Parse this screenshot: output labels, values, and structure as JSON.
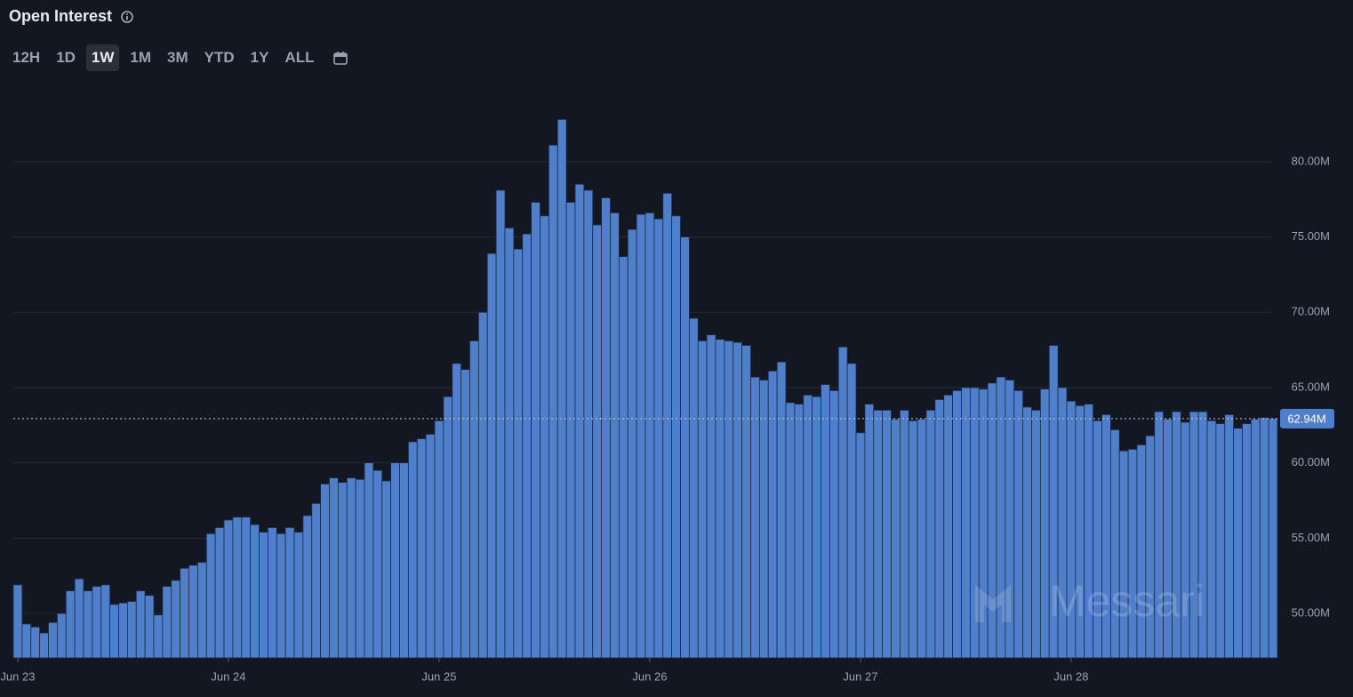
{
  "ui": {
    "title": "Open Interest",
    "ranges": [
      "12H",
      "1D",
      "1W",
      "1M",
      "3M",
      "YTD",
      "1Y",
      "ALL"
    ],
    "selected": "1W",
    "watermark": "Messari"
  },
  "chart_data": {
    "type": "bar",
    "color": "#4f7fcb",
    "categories": [
      "Jun 23",
      null,
      null,
      null,
      null,
      null,
      null,
      null,
      null,
      null,
      null,
      null,
      null,
      null,
      null,
      null,
      null,
      null,
      null,
      null,
      null,
      null,
      null,
      null,
      "Jun 24",
      null,
      null,
      null,
      null,
      null,
      null,
      null,
      null,
      null,
      null,
      null,
      null,
      null,
      null,
      null,
      null,
      null,
      null,
      null,
      null,
      null,
      null,
      null,
      "Jun 25",
      null,
      null,
      null,
      null,
      null,
      null,
      null,
      null,
      null,
      null,
      null,
      null,
      null,
      null,
      null,
      null,
      null,
      null,
      null,
      null,
      null,
      null,
      null,
      "Jun 26",
      null,
      null,
      null,
      null,
      null,
      null,
      null,
      null,
      null,
      null,
      null,
      null,
      null,
      null,
      null,
      null,
      null,
      null,
      null,
      null,
      null,
      null,
      null,
      "Jun 27",
      null,
      null,
      null,
      null,
      null,
      null,
      null,
      null,
      null,
      null,
      null,
      null,
      null,
      null,
      null,
      null,
      null,
      null,
      null,
      null,
      null,
      null,
      null,
      "Jun 28",
      null,
      null,
      null,
      null,
      null,
      null,
      null,
      null,
      null,
      null,
      null,
      null,
      null,
      null,
      null,
      null,
      null,
      null,
      null,
      null,
      null,
      null,
      null
    ],
    "values": [
      51.9,
      49.3,
      49.1,
      48.7,
      49.4,
      50.0,
      51.5,
      52.3,
      51.5,
      51.8,
      51.9,
      50.6,
      50.7,
      50.8,
      51.5,
      51.2,
      49.9,
      51.8,
      52.2,
      53.0,
      53.2,
      53.4,
      55.3,
      55.7,
      56.2,
      56.4,
      56.4,
      55.9,
      55.4,
      55.7,
      55.3,
      55.7,
      55.4,
      56.5,
      57.3,
      58.6,
      59.0,
      58.7,
      59.0,
      58.9,
      60.0,
      59.5,
      58.8,
      60.0,
      60.0,
      61.4,
      61.6,
      61.9,
      62.8,
      64.4,
      66.6,
      66.2,
      68.1,
      70.0,
      73.9,
      78.1,
      75.6,
      74.2,
      75.2,
      77.3,
      76.4,
      81.1,
      82.8,
      77.3,
      78.5,
      78.1,
      75.8,
      77.6,
      76.6,
      73.7,
      75.5,
      76.5,
      76.6,
      76.2,
      77.9,
      76.4,
      75.0,
      69.6,
      68.1,
      68.5,
      68.2,
      68.1,
      68.0,
      67.8,
      65.7,
      65.5,
      66.1,
      66.7,
      64.0,
      63.9,
      64.5,
      64.4,
      65.2,
      64.8,
      67.7,
      66.6,
      62.0,
      63.9,
      63.5,
      63.5,
      62.9,
      63.5,
      62.8,
      62.9,
      63.5,
      64.2,
      64.5,
      64.8,
      65.0,
      65.0,
      64.9,
      65.3,
      65.7,
      65.5,
      64.8,
      63.7,
      63.5,
      64.9,
      67.8,
      65.0,
      64.1,
      63.8,
      63.9,
      62.8,
      63.2,
      62.2,
      60.8,
      60.9,
      61.2,
      61.8,
      63.4,
      62.9,
      63.4,
      62.7,
      63.4,
      63.4,
      62.8,
      62.6,
      63.2,
      62.3,
      62.6,
      62.9,
      63.0,
      62.94
    ],
    "ylim": [
      47.05,
      84.8
    ],
    "yticks": [
      {
        "value": 50,
        "label": "50.00M"
      },
      {
        "value": 55,
        "label": "55.00M"
      },
      {
        "value": 60,
        "label": "60.00M"
      },
      {
        "value": 65,
        "label": "65.00M"
      },
      {
        "value": 70,
        "label": "70.00M"
      },
      {
        "value": 75,
        "label": "75.00M"
      },
      {
        "value": 80,
        "label": "80.00M"
      }
    ],
    "grid": true,
    "annotations": [
      {
        "value": 62.94,
        "label": "62.94M"
      }
    ]
  }
}
